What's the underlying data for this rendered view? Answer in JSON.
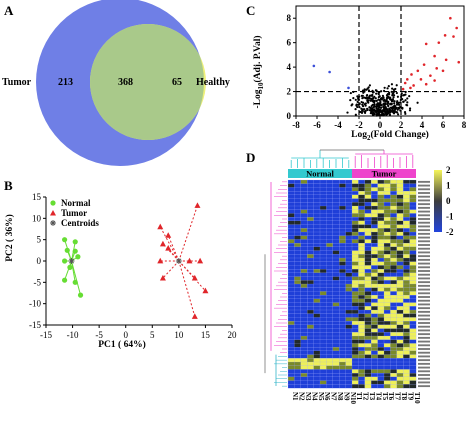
{
  "panels": {
    "A": {
      "letter": "A",
      "venn": {
        "left_label": "Tumor",
        "right_label": "Healthy",
        "left_only": "213",
        "overlap": "368",
        "right_only": "65",
        "colors": {
          "left": "#6f7fe6",
          "right": "#eef07a",
          "overlap": "#a9c98a"
        }
      }
    },
    "B": {
      "letter": "B",
      "chart_data": {
        "type": "scatter",
        "xlabel": "PC1 ( 64%)",
        "ylabel": "PC2 ( 36%)",
        "xlim": [
          -15,
          20
        ],
        "ylim": [
          -15,
          15
        ],
        "xticks": [
          "-15",
          "-10",
          "-5",
          "0",
          "5",
          "10",
          "15",
          "20"
        ],
        "yticks": [
          "15",
          "10",
          "5",
          "0",
          "-5",
          "-10",
          "-15"
        ],
        "legend": [
          "Normal",
          "Tumor",
          "Centroids"
        ],
        "legend_position": "top-left",
        "series": [
          {
            "name": "Normal",
            "color": "#66dd33",
            "centroid": [
              -10.2,
              0
            ],
            "points": [
              [
                -11.5,
                5
              ],
              [
                -9.5,
                4.5
              ],
              [
                -11,
                2.5
              ],
              [
                -9.5,
                2.3
              ],
              [
                -9,
                1
              ],
              [
                -11.5,
                0
              ],
              [
                -10.5,
                -1.5
              ],
              [
                -11.5,
                -4.5
              ],
              [
                -9.5,
                -5
              ],
              [
                -8.5,
                -8
              ]
            ]
          },
          {
            "name": "Tumor",
            "color": "#e0252a",
            "centroid": [
              10,
              0
            ],
            "points": [
              [
                13.5,
                13
              ],
              [
                6.5,
                8
              ],
              [
                8,
                6
              ],
              [
                7,
                4
              ],
              [
                8,
                3
              ],
              [
                6.5,
                0
              ],
              [
                12,
                0
              ],
              [
                14,
                0
              ],
              [
                7,
                -4
              ],
              [
                13,
                -4
              ],
              [
                15,
                -7
              ],
              [
                13,
                -13
              ]
            ]
          }
        ]
      }
    },
    "C": {
      "letter": "C",
      "chart_data": {
        "type": "scatter",
        "xlabel": "Log2(Fold Change)",
        "xlabel_main": "Log",
        "xlabel_sub": "2",
        "xlabel_rest": "(Fold Change)",
        "ylabel_pre": "-Log",
        "ylabel_sub": "10",
        "ylabel_rest": "(Adj. P.Val)",
        "xlim": [
          -8,
          8
        ],
        "ylim": [
          0,
          9
        ],
        "xticks": [
          "-8",
          "-6",
          "-4",
          "-2",
          "0",
          "2",
          "4",
          "6",
          "8"
        ],
        "yticks": [
          "8",
          "6",
          "4",
          "2",
          "0"
        ],
        "thresholds": {
          "x": [
            -2,
            2
          ],
          "y": 2
        },
        "colors": {
          "ns": "#000000",
          "up": "#e0252a",
          "down": "#3b4fd8"
        },
        "down_points": [
          [
            -6.3,
            4.1
          ],
          [
            -4.8,
            3.6
          ],
          [
            -3,
            2.3
          ]
        ],
        "up_points": [
          [
            6.7,
            8.0
          ],
          [
            7.3,
            7.2
          ],
          [
            6.2,
            6.6
          ],
          [
            5.6,
            6.0
          ],
          [
            7.0,
            6.5
          ],
          [
            4.4,
            5.9
          ],
          [
            5.2,
            4.9
          ],
          [
            6.3,
            4.6
          ],
          [
            7.5,
            4.4
          ],
          [
            4.2,
            4.2
          ],
          [
            5.4,
            3.9
          ],
          [
            3.6,
            3.7
          ],
          [
            6.0,
            3.7
          ],
          [
            3.0,
            3.4
          ],
          [
            4.8,
            3.3
          ],
          [
            2.6,
            3.0
          ],
          [
            3.9,
            3.0
          ],
          [
            2.4,
            2.7
          ],
          [
            3.2,
            2.5
          ],
          [
            4.4,
            2.6
          ],
          [
            2.9,
            2.3
          ],
          [
            5.2,
            2.9
          ],
          [
            2.2,
            2.2
          ]
        ],
        "ns_cloud_seed": 17
      }
    },
    "D": {
      "letter": "D",
      "group_labels": [
        "Normal",
        "Tumor"
      ],
      "group_colors": [
        "#33c9cf",
        "#ee44cc"
      ],
      "colorbar_ticks": [
        "2",
        "1",
        "0",
        "-1",
        "-2"
      ],
      "colorbar_colors": [
        "#f5f55a",
        "#3d3d3d",
        "#2244dd"
      ],
      "sample_labels": [
        "N1",
        "N2",
        "N3",
        "N4",
        "N5",
        "N6",
        "N7",
        "N8",
        "N9",
        "N10",
        "T1",
        "T2",
        "T3",
        "T4",
        "T5",
        "T6",
        "T7",
        "T8",
        "T9",
        "T10"
      ],
      "n_rows": 56,
      "n_cols": 20,
      "heatmap_seed": 42
    }
  }
}
